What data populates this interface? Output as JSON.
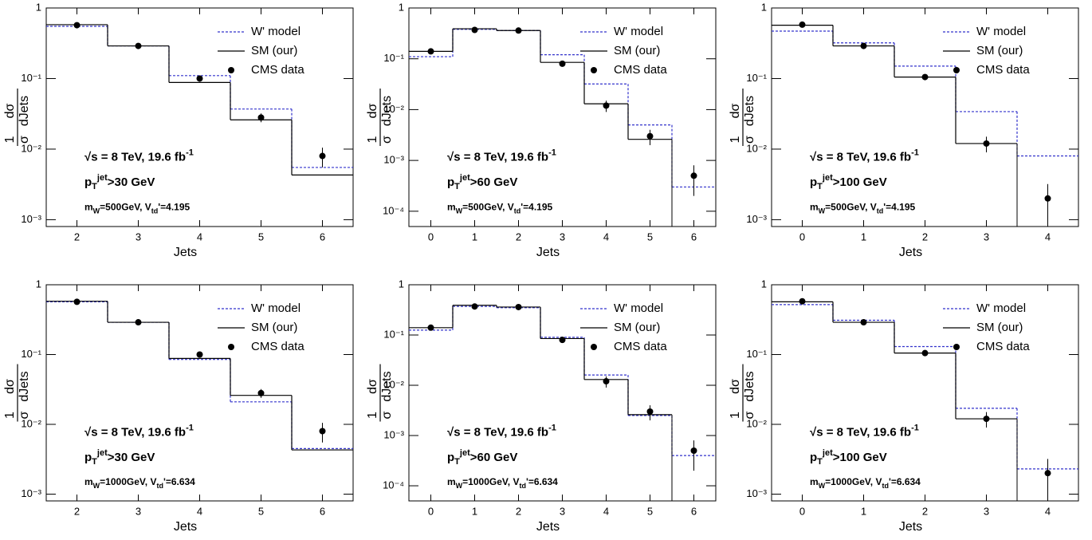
{
  "chart_data": [
    {
      "type": "step",
      "xlabel": "Jets",
      "ylabel": {
        "numerators": [
          "1",
          "dσ"
        ],
        "denominators": [
          "σ",
          "dJets"
        ]
      },
      "ylog": true,
      "x": [
        2,
        3,
        4,
        5,
        6
      ],
      "xlim": [
        1.5,
        6.5
      ],
      "xticks": [
        2,
        3,
        4,
        5,
        6
      ],
      "ylim": [
        0.0008,
        1
      ],
      "yticks": [
        {
          "value": 0.001,
          "label": "10⁻³"
        },
        {
          "value": 0.01,
          "label": "10⁻²"
        },
        {
          "value": 0.1,
          "label": "10⁻¹"
        },
        1
      ],
      "series": [
        {
          "name": "W' model",
          "color": "#3333cc",
          "style": "dashed",
          "values": [
            0.55,
            0.29,
            0.11,
            0.037,
            0.0055
          ]
        },
        {
          "name": "SM (our)",
          "color": "#000000",
          "style": "solid",
          "values": [
            0.58,
            0.29,
            0.088,
            0.026,
            0.0043
          ]
        },
        {
          "name": "CMS data",
          "color": "#000000",
          "style": "points",
          "values": [
            0.57,
            0.29,
            0.1,
            0.028,
            0.008
          ],
          "errors": [
            0.02,
            0.01,
            0.005,
            0.004,
            0.0025
          ]
        }
      ],
      "annotations": [
        [
          {
            "text": "√s = 8 TeV, 19.6 fb"
          },
          {
            "text": "-1",
            "pos": "sup"
          }
        ],
        [
          {
            "text": "p"
          },
          {
            "text": "T",
            "pos": "sub"
          },
          {
            "text": "jet",
            "pos": "sup"
          },
          {
            "text": ">30 GeV"
          }
        ],
        [
          {
            "text": "m"
          },
          {
            "text": "W",
            "pos": "sub"
          },
          {
            "text": "=500GeV, V"
          },
          {
            "text": "td",
            "pos": "sub"
          },
          {
            "text": "'=4.195"
          }
        ]
      ]
    },
    {
      "type": "step",
      "xlabel": "Jets",
      "ylabel": {
        "numerators": [
          "1",
          "dσ"
        ],
        "denominators": [
          "σ",
          "dJets"
        ]
      },
      "ylog": true,
      "x": [
        0,
        1,
        2,
        3,
        4,
        5,
        6
      ],
      "xlim": [
        -0.5,
        6.5
      ],
      "xticks": [
        0,
        1,
        2,
        3,
        4,
        5,
        6
      ],
      "ylim": [
        5e-05,
        1
      ],
      "yticks": [
        {
          "value": 0.0001,
          "label": "10⁻⁴"
        },
        {
          "value": 0.001,
          "label": "10⁻³"
        },
        {
          "value": 0.01,
          "label": "10⁻²"
        },
        {
          "value": 0.1,
          "label": "10⁻¹"
        },
        1
      ],
      "series": [
        {
          "name": "W' model",
          "color": "#3333cc",
          "style": "dashed",
          "values": [
            0.11,
            0.38,
            0.36,
            0.12,
            0.032,
            0.005,
            0.0003
          ]
        },
        {
          "name": "SM (our)",
          "color": "#000000",
          "style": "solid",
          "values": [
            0.14,
            0.39,
            0.36,
            0.085,
            0.013,
            0.0026,
            null
          ]
        },
        {
          "name": "CMS data",
          "color": "#000000",
          "style": "points",
          "values": [
            0.14,
            0.37,
            0.36,
            0.08,
            0.012,
            0.003,
            0.0005
          ],
          "errors": [
            0.005,
            0.01,
            0.01,
            0.004,
            0.003,
            0.001,
            0.0003
          ]
        }
      ],
      "annotations": [
        [
          {
            "text": "√s = 8 TeV, 19.6 fb"
          },
          {
            "text": "-1",
            "pos": "sup"
          }
        ],
        [
          {
            "text": "p"
          },
          {
            "text": "T",
            "pos": "sub"
          },
          {
            "text": "jet",
            "pos": "sup"
          },
          {
            "text": ">60 GeV"
          }
        ],
        [
          {
            "text": "m"
          },
          {
            "text": "W",
            "pos": "sub"
          },
          {
            "text": "=500GeV, V"
          },
          {
            "text": "td",
            "pos": "sub"
          },
          {
            "text": "'=4.195"
          }
        ]
      ]
    },
    {
      "type": "step",
      "xlabel": "Jets",
      "ylabel": {
        "numerators": [
          "1",
          "dσ"
        ],
        "denominators": [
          "σ",
          "dJets"
        ]
      },
      "ylog": true,
      "x": [
        0,
        1,
        2,
        3,
        4
      ],
      "xlim": [
        -0.5,
        4.5
      ],
      "xticks": [
        0,
        1,
        2,
        3,
        4
      ],
      "ylim": [
        0.0008,
        1
      ],
      "yticks": [
        {
          "value": 0.001,
          "label": "10⁻³"
        },
        {
          "value": 0.01,
          "label": "10⁻²"
        },
        {
          "value": 0.1,
          "label": "10⁻¹"
        },
        1
      ],
      "series": [
        {
          "name": "W' model",
          "color": "#3333cc",
          "style": "dashed",
          "values": [
            0.47,
            0.32,
            0.15,
            0.034,
            0.008
          ]
        },
        {
          "name": "SM (our)",
          "color": "#000000",
          "style": "solid",
          "values": [
            0.57,
            0.29,
            0.105,
            0.012,
            null
          ]
        },
        {
          "name": "CMS data",
          "color": "#000000",
          "style": "points",
          "values": [
            0.58,
            0.29,
            0.105,
            0.012,
            0.002
          ],
          "errors": [
            0.02,
            0.01,
            0.005,
            0.003,
            0.0012
          ]
        }
      ],
      "annotations": [
        [
          {
            "text": "√s = 8 TeV, 19.6 fb"
          },
          {
            "text": "-1",
            "pos": "sup"
          }
        ],
        [
          {
            "text": "p"
          },
          {
            "text": "T",
            "pos": "sub"
          },
          {
            "text": "jet",
            "pos": "sup"
          },
          {
            "text": ">100 GeV"
          }
        ],
        [
          {
            "text": "m"
          },
          {
            "text": "W",
            "pos": "sub"
          },
          {
            "text": "=500GeV, V"
          },
          {
            "text": "td",
            "pos": "sub"
          },
          {
            "text": "'=4.195"
          }
        ]
      ]
    },
    {
      "type": "step",
      "xlabel": "Jets",
      "ylabel": {
        "numerators": [
          "1",
          "dσ"
        ],
        "denominators": [
          "σ",
          "dJets"
        ]
      },
      "ylog": true,
      "x": [
        2,
        3,
        4,
        5,
        6
      ],
      "xlim": [
        1.5,
        6.5
      ],
      "xticks": [
        2,
        3,
        4,
        5,
        6
      ],
      "ylim": [
        0.0008,
        1
      ],
      "yticks": [
        {
          "value": 0.001,
          "label": "10⁻³"
        },
        {
          "value": 0.01,
          "label": "10⁻²"
        },
        {
          "value": 0.1,
          "label": "10⁻¹"
        },
        1
      ],
      "series": [
        {
          "name": "W' model",
          "color": "#3333cc",
          "style": "dashed",
          "values": [
            0.57,
            0.29,
            0.085,
            0.021,
            0.0045
          ]
        },
        {
          "name": "SM (our)",
          "color": "#000000",
          "style": "solid",
          "values": [
            0.58,
            0.29,
            0.088,
            0.026,
            0.0043
          ]
        },
        {
          "name": "CMS data",
          "color": "#000000",
          "style": "points",
          "values": [
            0.57,
            0.29,
            0.1,
            0.028,
            0.008
          ],
          "errors": [
            0.02,
            0.01,
            0.005,
            0.004,
            0.0025
          ]
        }
      ],
      "annotations": [
        [
          {
            "text": "√s = 8 TeV, 19.6 fb"
          },
          {
            "text": "-1",
            "pos": "sup"
          }
        ],
        [
          {
            "text": "p"
          },
          {
            "text": "T",
            "pos": "sub"
          },
          {
            "text": "jet",
            "pos": "sup"
          },
          {
            "text": ">30 GeV"
          }
        ],
        [
          {
            "text": "m"
          },
          {
            "text": "W",
            "pos": "sub"
          },
          {
            "text": "=1000GeV, V"
          },
          {
            "text": "td",
            "pos": "sub"
          },
          {
            "text": "'=6.634"
          }
        ]
      ]
    },
    {
      "type": "step",
      "xlabel": "Jets",
      "ylabel": {
        "numerators": [
          "1",
          "dσ"
        ],
        "denominators": [
          "σ",
          "dJets"
        ]
      },
      "ylog": true,
      "x": [
        0,
        1,
        2,
        3,
        4,
        5,
        6
      ],
      "xlim": [
        -0.5,
        6.5
      ],
      "xticks": [
        0,
        1,
        2,
        3,
        4,
        5,
        6
      ],
      "ylim": [
        5e-05,
        1
      ],
      "yticks": [
        {
          "value": 0.0001,
          "label": "10⁻⁴"
        },
        {
          "value": 0.001,
          "label": "10⁻³"
        },
        {
          "value": 0.01,
          "label": "10⁻²"
        },
        {
          "value": 0.1,
          "label": "10⁻¹"
        },
        1
      ],
      "series": [
        {
          "name": "W' model",
          "color": "#3333cc",
          "style": "dashed",
          "values": [
            0.125,
            0.37,
            0.35,
            0.09,
            0.016,
            0.0025,
            0.0004
          ]
        },
        {
          "name": "SM (our)",
          "color": "#000000",
          "style": "solid",
          "values": [
            0.14,
            0.39,
            0.36,
            0.085,
            0.013,
            0.0026,
            null
          ]
        },
        {
          "name": "CMS data",
          "color": "#000000",
          "style": "points",
          "values": [
            0.14,
            0.37,
            0.36,
            0.08,
            0.012,
            0.003,
            0.0005
          ],
          "errors": [
            0.005,
            0.01,
            0.01,
            0.004,
            0.003,
            0.001,
            0.0003
          ]
        }
      ],
      "annotations": [
        [
          {
            "text": "√s = 8 TeV, 19.6 fb"
          },
          {
            "text": "-1",
            "pos": "sup"
          }
        ],
        [
          {
            "text": "p"
          },
          {
            "text": "T",
            "pos": "sub"
          },
          {
            "text": "jet",
            "pos": "sup"
          },
          {
            "text": ">60 GeV"
          }
        ],
        [
          {
            "text": "m"
          },
          {
            "text": "W",
            "pos": "sub"
          },
          {
            "text": "=1000GeV, V"
          },
          {
            "text": "td",
            "pos": "sub"
          },
          {
            "text": "'=6.634"
          }
        ]
      ]
    },
    {
      "type": "step",
      "xlabel": "Jets",
      "ylabel": {
        "numerators": [
          "1",
          "dσ"
        ],
        "denominators": [
          "σ",
          "dJets"
        ]
      },
      "ylog": true,
      "x": [
        0,
        1,
        2,
        3,
        4
      ],
      "xlim": [
        -0.5,
        4.5
      ],
      "xticks": [
        0,
        1,
        2,
        3,
        4
      ],
      "ylim": [
        0.0008,
        1
      ],
      "yticks": [
        {
          "value": 0.001,
          "label": "10⁻³"
        },
        {
          "value": 0.01,
          "label": "10⁻²"
        },
        {
          "value": 0.1,
          "label": "10⁻¹"
        },
        1
      ],
      "series": [
        {
          "name": "W' model",
          "color": "#3333cc",
          "style": "dashed",
          "values": [
            0.52,
            0.31,
            0.13,
            0.017,
            0.0023
          ]
        },
        {
          "name": "SM (our)",
          "color": "#000000",
          "style": "solid",
          "values": [
            0.57,
            0.29,
            0.105,
            0.012,
            null
          ]
        },
        {
          "name": "CMS data",
          "color": "#000000",
          "style": "points",
          "values": [
            0.58,
            0.29,
            0.105,
            0.012,
            0.002
          ],
          "errors": [
            0.02,
            0.01,
            0.005,
            0.003,
            0.0012
          ]
        }
      ],
      "annotations": [
        [
          {
            "text": "√s = 8 TeV, 19.6 fb"
          },
          {
            "text": "-1",
            "pos": "sup"
          }
        ],
        [
          {
            "text": "p"
          },
          {
            "text": "T",
            "pos": "sub"
          },
          {
            "text": "jet",
            "pos": "sup"
          },
          {
            "text": ">100 GeV"
          }
        ],
        [
          {
            "text": "m"
          },
          {
            "text": "W",
            "pos": "sub"
          },
          {
            "text": "=1000GeV, V"
          },
          {
            "text": "td",
            "pos": "sub"
          },
          {
            "text": "'=6.634"
          }
        ]
      ]
    }
  ]
}
